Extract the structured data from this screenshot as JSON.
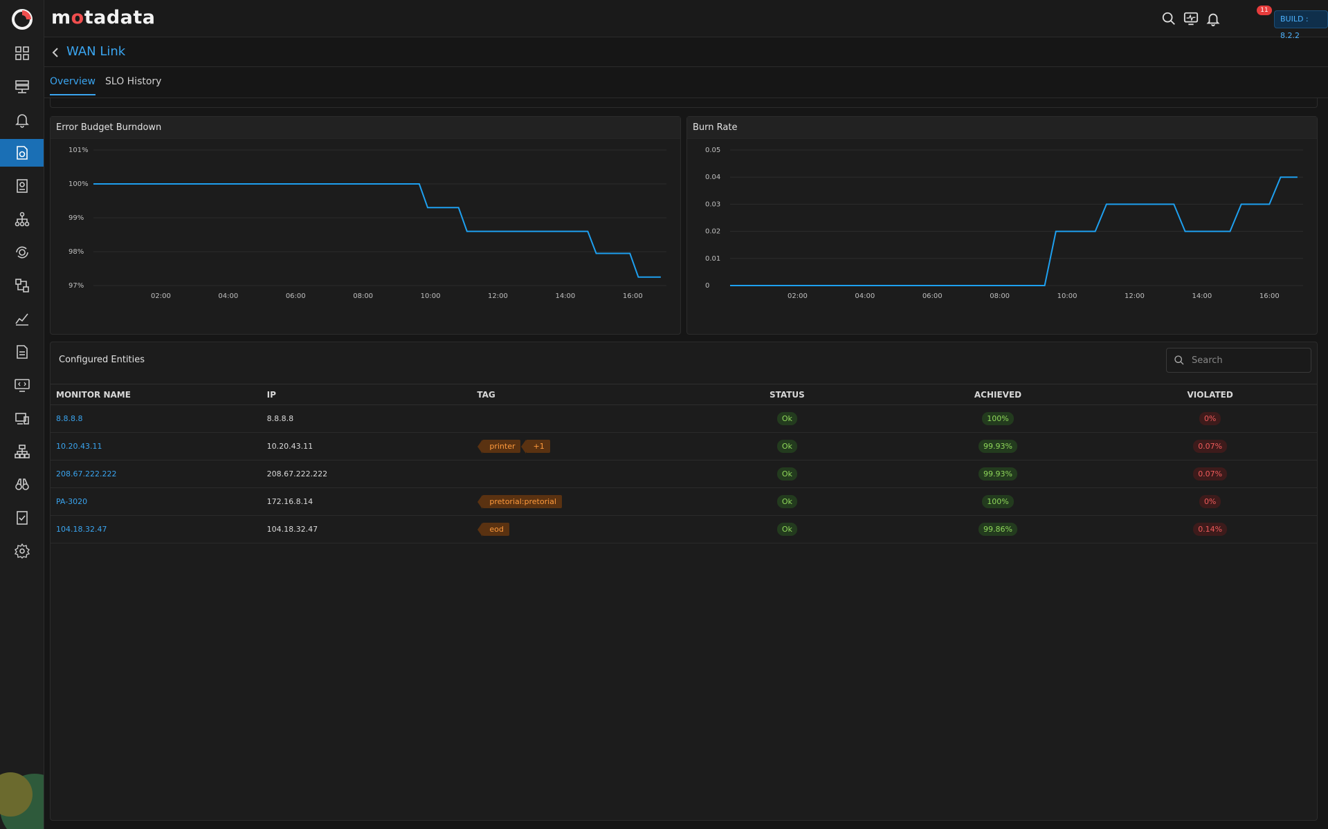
{
  "app": {
    "brand_pre": "m",
    "brand_dot": "o",
    "brand_post": "tadata",
    "build": "BUILD : 8.2.2",
    "notifications": "11"
  },
  "sidebar": {
    "items": [
      "dashboard-icon",
      "server-icon",
      "bell-icon",
      "slo-icon",
      "report-icon",
      "topology-icon",
      "flow-icon",
      "config-icon",
      "metric-icon",
      "document-icon",
      "monitor-code-icon",
      "device-icon",
      "network-icon",
      "binoculars-icon",
      "audit-icon",
      "gear-icon"
    ],
    "active_index": 3
  },
  "page": {
    "title": "WAN Link"
  },
  "tabs": [
    {
      "label": "Overview",
      "active": true
    },
    {
      "label": "SLO History",
      "active": false
    }
  ],
  "charts": {
    "burndown_title": "Error Budget Burndown",
    "burnrate_title": "Burn Rate"
  },
  "chart_data": [
    {
      "type": "line",
      "title": "Error Budget Burndown",
      "x": [
        "00:00",
        "02:00",
        "04:00",
        "06:00",
        "08:00",
        "09:40",
        "09:55",
        "10:50",
        "11:05",
        "14:40",
        "14:55",
        "15:55",
        "16:10",
        "16:50"
      ],
      "series": [
        {
          "values": [
            100,
            100,
            100,
            100,
            100,
            100,
            99.3,
            99.3,
            98.6,
            98.6,
            97.95,
            97.95,
            97.25,
            97.25
          ]
        }
      ],
      "xticks": [
        "02:00",
        "04:00",
        "06:00",
        "08:00",
        "10:00",
        "12:00",
        "14:00",
        "16:00"
      ],
      "yticks": [
        "97%",
        "98%",
        "99%",
        "100%",
        "101%"
      ],
      "ylim": [
        97,
        101
      ],
      "grid": true
    },
    {
      "type": "line",
      "title": "Burn Rate",
      "x": [
        "00:00",
        "02:00",
        "04:00",
        "06:00",
        "08:00",
        "09:20",
        "09:40",
        "10:50",
        "11:10",
        "13:10",
        "13:30",
        "14:50",
        "15:10",
        "16:00",
        "16:20",
        "16:50"
      ],
      "series": [
        {
          "values": [
            0,
            0,
            0,
            0,
            0,
            0,
            0.02,
            0.02,
            0.03,
            0.03,
            0.02,
            0.02,
            0.03,
            0.03,
            0.04,
            0.04
          ]
        }
      ],
      "xticks": [
        "02:00",
        "04:00",
        "06:00",
        "08:00",
        "10:00",
        "12:00",
        "14:00",
        "16:00"
      ],
      "yticks": [
        "0",
        "0.01",
        "0.02",
        "0.03",
        "0.04",
        "0.05"
      ],
      "ylim": [
        0,
        0.05
      ],
      "grid": true
    }
  ],
  "entities": {
    "title": "Configured Entities",
    "search_placeholder": "Search",
    "columns": [
      "MONITOR NAME",
      "IP",
      "TAG",
      "STATUS",
      "ACHIEVED",
      "VIOLATED"
    ],
    "rows": [
      {
        "name": "8.8.8.8",
        "ip": "8.8.8.8",
        "tags": [],
        "status": "Ok",
        "achieved": "100%",
        "violated": "0%"
      },
      {
        "name": "10.20.43.11",
        "ip": "10.20.43.11",
        "tags": [
          "printer",
          "+1"
        ],
        "status": "Ok",
        "achieved": "99.93%",
        "violated": "0.07%"
      },
      {
        "name": "208.67.222.222",
        "ip": "208.67.222.222",
        "tags": [],
        "status": "Ok",
        "achieved": "99.93%",
        "violated": "0.07%"
      },
      {
        "name": "PA-3020",
        "ip": "172.16.8.14",
        "tags": [
          "pretorial:pretorial"
        ],
        "status": "Ok",
        "achieved": "100%",
        "violated": "0%"
      },
      {
        "name": "104.18.32.47",
        "ip": "104.18.32.47",
        "tags": [
          "eod"
        ],
        "status": "Ok",
        "achieved": "99.86%",
        "violated": "0.14%"
      }
    ]
  },
  "colors": {
    "accent": "#3aa5f0",
    "line": "#1ea0f0",
    "ok": "#8fd75a",
    "violation": "#f05b5b",
    "tag": "#ff9a3c"
  }
}
